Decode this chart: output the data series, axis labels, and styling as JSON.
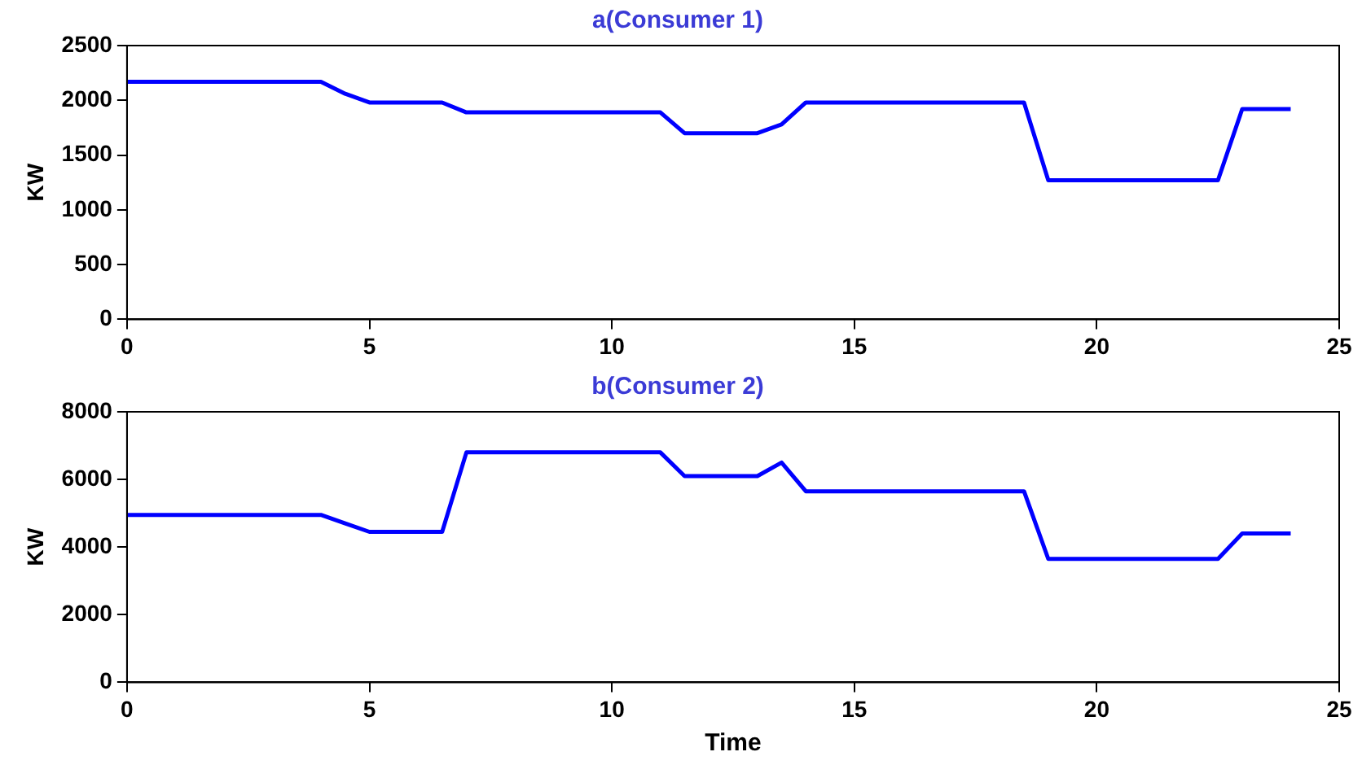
{
  "chart_data": [
    {
      "type": "line",
      "title": "a(Consumer 1)",
      "ylabel": "KW",
      "x": [
        0,
        4,
        4.5,
        5,
        6.5,
        7,
        11,
        11.5,
        13,
        13.5,
        14,
        18.5,
        19,
        22.5,
        23,
        24
      ],
      "series": [
        {
          "color": "#0000ff",
          "values": [
            2170,
            2170,
            2060,
            1980,
            1980,
            1890,
            1890,
            1700,
            1700,
            1780,
            1980,
            1980,
            1270,
            1270,
            1920,
            1920
          ]
        }
      ],
      "xlim": [
        0,
        25
      ],
      "xticks": [
        0,
        5,
        10,
        15,
        20,
        25
      ],
      "ylim": [
        0,
        2500
      ],
      "yticks": [
        0,
        500,
        1000,
        1500,
        2000,
        2500
      ],
      "grid": false,
      "legend": false,
      "marker": "none",
      "line_style": "solid"
    },
    {
      "type": "line",
      "title": "b(Consumer 2)",
      "ylabel": "KW",
      "xlabel": "Time",
      "x": [
        0,
        4,
        4.5,
        5,
        6.5,
        7,
        11,
        11.5,
        13,
        13.5,
        14,
        18.5,
        19,
        22.5,
        23,
        24
      ],
      "series": [
        {
          "color": "#0000ff",
          "values": [
            4950,
            4950,
            4700,
            4450,
            4450,
            6800,
            6800,
            6100,
            6100,
            6500,
            5650,
            5650,
            3650,
            3650,
            4400,
            4400
          ]
        }
      ],
      "xlim": [
        0,
        25
      ],
      "xticks": [
        0,
        5,
        10,
        15,
        20,
        25
      ],
      "ylim": [
        0,
        8000
      ],
      "yticks": [
        0,
        2000,
        4000,
        6000,
        8000
      ],
      "grid": false,
      "legend": false,
      "marker": "none",
      "line_style": "solid"
    }
  ]
}
